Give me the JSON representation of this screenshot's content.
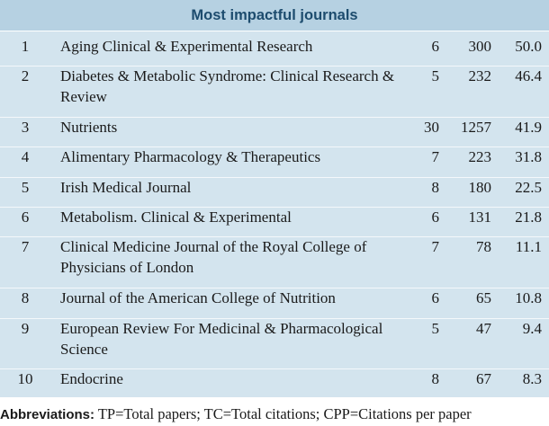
{
  "table": {
    "title": "Most impactful journals",
    "rows": [
      {
        "rank": "1",
        "journal": "Aging Clinical & Experimental Research",
        "tp": "6",
        "tc": "300",
        "cpp": "50.0"
      },
      {
        "rank": "2",
        "journal": "Diabetes & Metabolic Syndrome: Clinical Research & Review",
        "tp": "5",
        "tc": "232",
        "cpp": "46.4"
      },
      {
        "rank": "3",
        "journal": "Nutrients",
        "tp": "30",
        "tc": "1257",
        "cpp": "41.9"
      },
      {
        "rank": "4",
        "journal": "Alimentary Pharmacology & Therapeutics",
        "tp": "7",
        "tc": "223",
        "cpp": "31.8"
      },
      {
        "rank": "5",
        "journal": "Irish Medical Journal",
        "tp": "8",
        "tc": "180",
        "cpp": "22.5"
      },
      {
        "rank": "6",
        "journal": "Metabolism. Clinical & Experimental",
        "tp": "6",
        "tc": "131",
        "cpp": "21.8"
      },
      {
        "rank": "7",
        "journal": "Clinical Medicine Journal of the Royal College of Physicians of London",
        "tp": "7",
        "tc": "78",
        "cpp": "11.1"
      },
      {
        "rank": "8",
        "journal": "Journal of the American College of Nutrition",
        "tp": "6",
        "tc": "65",
        "cpp": "10.8"
      },
      {
        "rank": "9",
        "journal": "European Review For Medicinal & Pharmacological Science",
        "tp": "5",
        "tc": "47",
        "cpp": "9.4"
      },
      {
        "rank": "10",
        "journal": "Endocrine",
        "tp": "8",
        "tc": "67",
        "cpp": "8.3"
      }
    ]
  },
  "footnote": {
    "label": "Abbreviations:",
    "text": " TP=Total papers; TC=Total citations; CPP=Citations per paper"
  }
}
